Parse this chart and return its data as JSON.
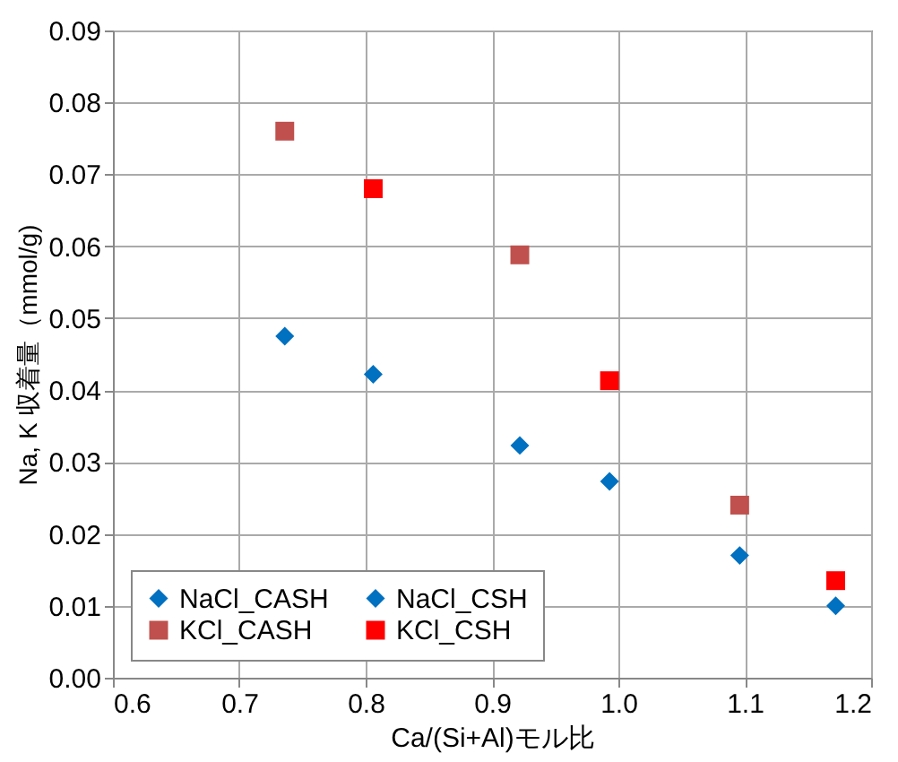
{
  "chart_data": {
    "type": "scatter",
    "xlabel": "Ca/(Si+Al)モル比",
    "ylabel": "Na, K 収着量（mmol/g)",
    "xlim": [
      0.6,
      1.2
    ],
    "xticks": [
      {
        "value": 0.6,
        "label": "0.6"
      },
      {
        "value": 0.7,
        "label": "0.7"
      },
      {
        "value": 0.8,
        "label": "0.8"
      },
      {
        "value": 0.9,
        "label": "0.9"
      },
      {
        "value": 1.0,
        "label": "1.0"
      },
      {
        "value": 1.1,
        "label": "1.1"
      },
      {
        "value": 1.2,
        "label": "1.2"
      }
    ],
    "ylim": [
      0,
      0.09
    ],
    "yticks": [
      {
        "value": 0,
        "label": "0.00"
      },
      {
        "value": 0.01,
        "label": "0.01"
      },
      {
        "value": 0.02,
        "label": "0.02"
      },
      {
        "value": 0.03,
        "label": "0.03"
      },
      {
        "value": 0.04,
        "label": "0.04"
      },
      {
        "value": 0.05,
        "label": "0.05"
      },
      {
        "value": 0.06,
        "label": "0.06"
      },
      {
        "value": 0.07,
        "label": "0.07"
      },
      {
        "value": 0.08,
        "label": "0.08"
      },
      {
        "value": 0.09,
        "label": "0.09"
      }
    ],
    "grid": true,
    "legend": "bottom left",
    "series": [
      {
        "name": "NaCl_CASH",
        "color": "#0070c0",
        "marker": "diamond",
        "x": [
          0.736,
          0.922,
          1.096
        ],
        "values": [
          0.0475,
          0.0323,
          0.017
        ]
      },
      {
        "name": "KCl_CASH",
        "color": "#c0504d",
        "marker": "square",
        "x": [
          0.736,
          0.922,
          1.096
        ],
        "values": [
          0.076,
          0.0588,
          0.024
        ]
      },
      {
        "name": "NaCl_CSH",
        "color": "#0070c0",
        "marker": "diamond",
        "x": [
          0.806,
          0.993,
          1.172
        ],
        "values": [
          0.0422,
          0.0273,
          0.01
        ]
      },
      {
        "name": "KCl_CSH",
        "color": "#ff0000",
        "marker": "square",
        "x": [
          0.806,
          0.993,
          1.172
        ],
        "values": [
          0.068,
          0.0413,
          0.0135
        ]
      }
    ]
  }
}
